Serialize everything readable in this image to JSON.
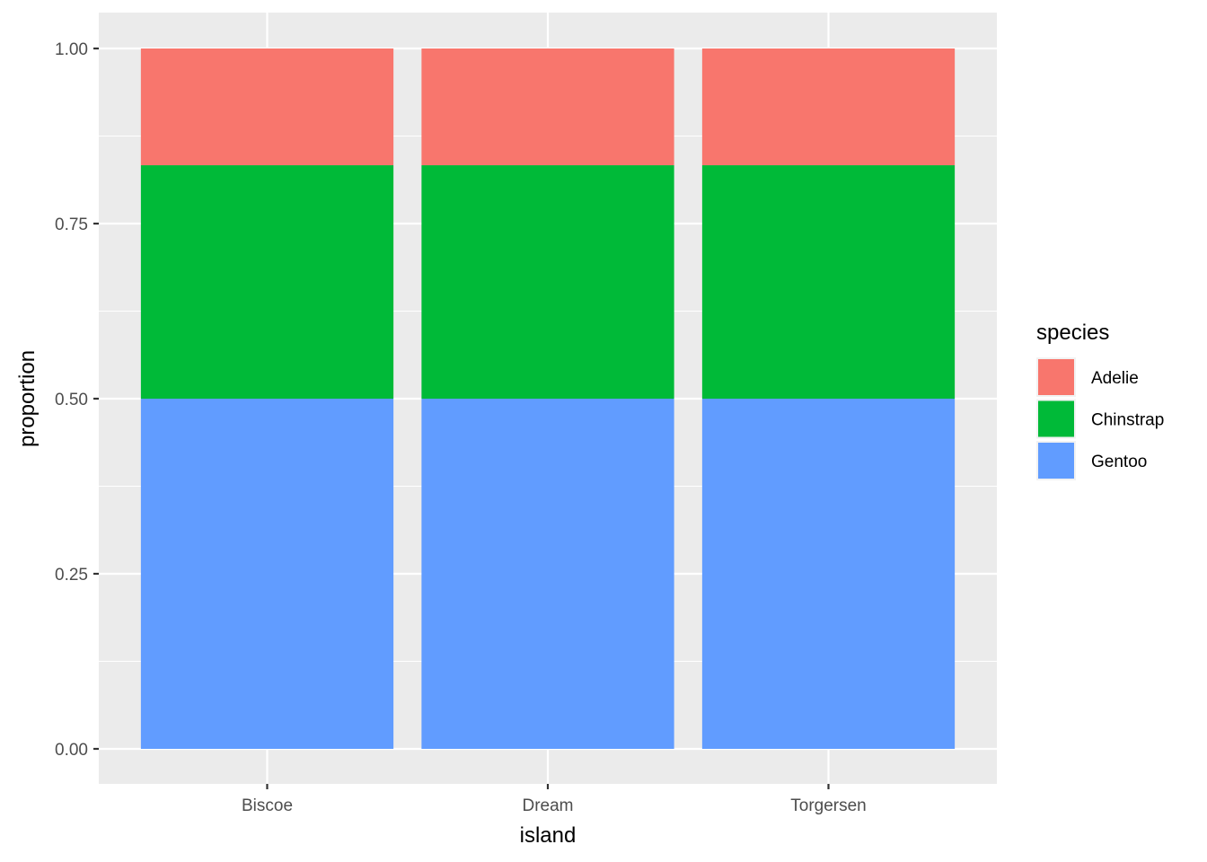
{
  "chart_data": {
    "type": "bar",
    "stacked": true,
    "categories": [
      "Biscoe",
      "Dream",
      "Torgersen"
    ],
    "series": [
      {
        "name": "Adelie",
        "values": [
          0.1667,
          0.1667,
          0.1667
        ],
        "color": "#F8766D"
      },
      {
        "name": "Chinstrap",
        "values": [
          0.3333,
          0.3333,
          0.3333
        ],
        "color": "#00BA38"
      },
      {
        "name": "Gentoo",
        "values": [
          0.5,
          0.5,
          0.5
        ],
        "color": "#619CFF"
      }
    ],
    "stack_order_bottom_to_top": [
      "Gentoo",
      "Chinstrap",
      "Adelie"
    ],
    "xlabel": "island",
    "ylabel": "proportion",
    "ylim": [
      0,
      1
    ],
    "yticks": [
      0,
      0.25,
      0.5,
      0.75,
      1.0
    ],
    "ytick_labels": [
      "0.00",
      "0.25",
      "0.50",
      "0.75",
      "1.00"
    ],
    "grid": true,
    "legend": {
      "title": "species",
      "placement": "right"
    },
    "panel_background": "#EBEBEB",
    "grid_color": "#FFFFFF"
  }
}
